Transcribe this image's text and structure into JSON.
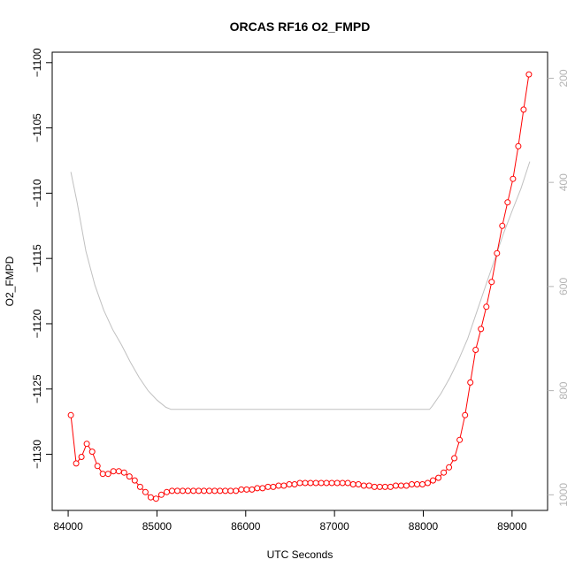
{
  "chart_data": {
    "type": "line",
    "title": "ORCAS RF16 O2_FMPD",
    "xlabel": "UTC Seconds",
    "ylabel": "O2_FMPD",
    "xlim": [
      83820,
      89400
    ],
    "ylim": [
      -1134.3,
      -1099.2
    ],
    "y2lim": [
      1030,
      150
    ],
    "x_ticks": [
      84000,
      85000,
      86000,
      87000,
      88000,
      89000
    ],
    "y_ticks": [
      -1130,
      -1125,
      -1120,
      -1115,
      -1110,
      -1105,
      -1100
    ],
    "y2_ticks": [
      200,
      400,
      600,
      800,
      1000
    ],
    "series": [
      {
        "color": "#ff0000",
        "marker": "open-circle",
        "axis": "left",
        "x": [
          84030,
          84090,
          84150,
          84210,
          84270,
          84330,
          84390,
          84450,
          84510,
          84570,
          84630,
          84690,
          84750,
          84810,
          84870,
          84930,
          84990,
          85050,
          85110,
          85170,
          85230,
          85290,
          85350,
          85410,
          85470,
          85530,
          85590,
          85650,
          85710,
          85770,
          85830,
          85890,
          85950,
          86010,
          86070,
          86130,
          86190,
          86250,
          86310,
          86370,
          86430,
          86490,
          86550,
          86610,
          86670,
          86730,
          86790,
          86850,
          86910,
          86970,
          87030,
          87090,
          87150,
          87210,
          87270,
          87330,
          87390,
          87450,
          87510,
          87570,
          87630,
          87690,
          87750,
          87810,
          87870,
          87930,
          87990,
          88050,
          88110,
          88170,
          88230,
          88290,
          88350,
          88410,
          88470,
          88530,
          88590,
          88650,
          88710,
          88770,
          88830,
          88890,
          88950,
          89010,
          89070,
          89130,
          89190
        ],
        "y": [
          -1127.0,
          -1130.7,
          -1130.2,
          -1129.2,
          -1129.8,
          -1130.9,
          -1131.5,
          -1131.5,
          -1131.3,
          -1131.3,
          -1131.4,
          -1131.7,
          -1132.0,
          -1132.5,
          -1132.9,
          -1133.3,
          -1133.4,
          -1133.1,
          -1132.9,
          -1132.8,
          -1132.8,
          -1132.8,
          -1132.8,
          -1132.8,
          -1132.8,
          -1132.8,
          -1132.8,
          -1132.8,
          -1132.8,
          -1132.8,
          -1132.8,
          -1132.8,
          -1132.7,
          -1132.7,
          -1132.7,
          -1132.6,
          -1132.6,
          -1132.5,
          -1132.5,
          -1132.4,
          -1132.4,
          -1132.3,
          -1132.3,
          -1132.2,
          -1132.2,
          -1132.2,
          -1132.2,
          -1132.2,
          -1132.2,
          -1132.2,
          -1132.2,
          -1132.2,
          -1132.2,
          -1132.3,
          -1132.3,
          -1132.4,
          -1132.4,
          -1132.5,
          -1132.5,
          -1132.5,
          -1132.5,
          -1132.4,
          -1132.4,
          -1132.4,
          -1132.3,
          -1132.3,
          -1132.3,
          -1132.2,
          -1132.0,
          -1131.8,
          -1131.4,
          -1131.0,
          -1130.3,
          -1128.9,
          -1127.0,
          -1124.5,
          -1122.0,
          -1120.4,
          -1118.7,
          -1116.8,
          -1114.6,
          -1112.5,
          -1110.7,
          -1108.9,
          -1106.4,
          -1103.6,
          -1100.9
        ]
      },
      {
        "color": "#c0c0c0",
        "marker": "none",
        "axis": "right",
        "x": [
          84030,
          84100,
          84200,
          84300,
          84400,
          84500,
          84600,
          84700,
          84800,
          84900,
          85000,
          85100,
          85160,
          85500,
          86000,
          86500,
          87000,
          87500,
          88000,
          88070,
          88100,
          88200,
          88300,
          88400,
          88500,
          88600,
          88700,
          88800,
          88900,
          89000,
          89100,
          89200
        ],
        "y": [
          380,
          438,
          532,
          597,
          645,
          682,
          712,
          745,
          775,
          800,
          818,
          832,
          836,
          836,
          836,
          836,
          836,
          836,
          836,
          836,
          830,
          805,
          775,
          740,
          700,
          650,
          600,
          550,
          500,
          455,
          412,
          360
        ]
      }
    ]
  }
}
